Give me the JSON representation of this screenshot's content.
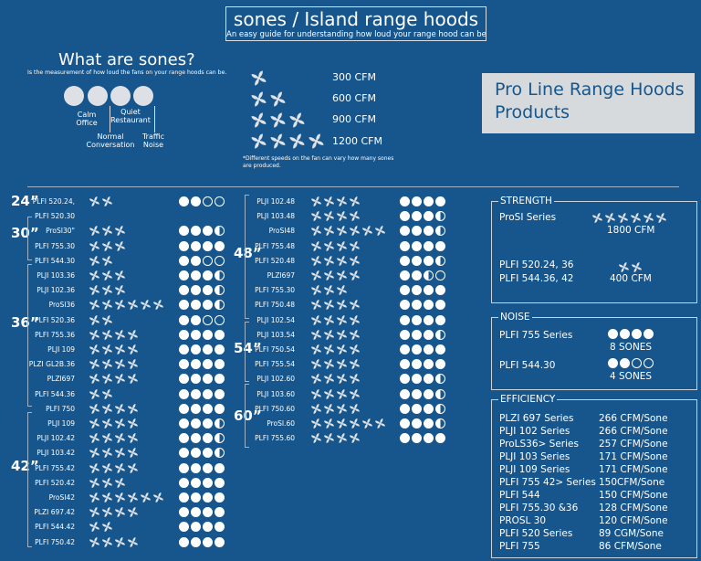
{
  "header": {
    "title": "sones / Island range hoods",
    "subtitle": "An easy guide for understanding how loud your range hood can be"
  },
  "what_are_sones": {
    "title": "What are sones?",
    "subtitle": "Is the measurement of how loud the fans on your range hoods can be.",
    "levels": [
      "Calm Office",
      "Normal Conversation",
      "Quiet Restaurant",
      "Traffic Noise"
    ]
  },
  "cfm_legend": {
    "rows": [
      {
        "fans": 1,
        "label": "300 CFM"
      },
      {
        "fans": 2,
        "label": "600 CFM"
      },
      {
        "fans": 3,
        "label": "900 CFM"
      },
      {
        "fans": 4,
        "label": "1200 CFM"
      }
    ],
    "note": "*Different speeds on the fan can vary how many sones are produced."
  },
  "pro_line": {
    "line1": "Pro Line Range Hoods",
    "line2": "Products"
  },
  "sizes": [
    "24”",
    "30”",
    "36”",
    "42”",
    "48”",
    "54”",
    "60”"
  ],
  "colors": {
    "background": "#17568c",
    "foreground": "#ffffff",
    "panel_fill": "#d7dadd"
  },
  "left_products": [
    {
      "name": "PLFI 520.24,",
      "fans": 2,
      "sones": 2.0
    },
    {
      "name": "PLFI 520.30",
      "fans": 0,
      "sones": null
    },
    {
      "name": "ProSI30\"",
      "fans": 3,
      "sones": 3.5
    },
    {
      "name": "PLFI 755.30",
      "fans": 3,
      "sones": 4
    },
    {
      "name": "PLFI 544.30",
      "fans": 2,
      "sones": 2.0
    },
    {
      "name": "PLJI 103.36",
      "fans": 3,
      "sones": 3.5
    },
    {
      "name": "PLJI 102.36",
      "fans": 3,
      "sones": 3.5
    },
    {
      "name": "ProSI36",
      "fans": 6,
      "sones": 3.5
    },
    {
      "name": "PLFI 520.36",
      "fans": 2,
      "sones": 2.0
    },
    {
      "name": "PLFI 755.36",
      "fans": 4,
      "sones": 4
    },
    {
      "name": "PLJI 109",
      "fans": 4,
      "sones": 4
    },
    {
      "name": "PLZI GL2B.36",
      "fans": 4,
      "sones": 4
    },
    {
      "name": "PLZI697",
      "fans": 4,
      "sones": 4
    },
    {
      "name": "PLFI 544.36",
      "fans": 2,
      "sones": 4
    },
    {
      "name": "PLFI 750",
      "fans": 4,
      "sones": 4
    },
    {
      "name": "PLJI 109",
      "fans": 4,
      "sones": 3.5
    },
    {
      "name": "PLJI 102.42",
      "fans": 4,
      "sones": 3.5
    },
    {
      "name": "PLJI 103.42",
      "fans": 4,
      "sones": 3.5
    },
    {
      "name": "PLFI 755.42",
      "fans": 4,
      "sones": 5
    },
    {
      "name": "PLFI 520.42",
      "fans": 3,
      "sones": 5
    },
    {
      "name": "ProSI42",
      "fans": 6,
      "sones": 5
    },
    {
      "name": "PLZI 697.42",
      "fans": 4,
      "sones": 5
    },
    {
      "name": "PLFI 544.42",
      "fans": 2,
      "sones": 5
    },
    {
      "name": "PLFI 750.42",
      "fans": 4,
      "sones": 5
    }
  ],
  "right_products": [
    {
      "name": "PLJI 102.48",
      "fans": 4,
      "sones": 4
    },
    {
      "name": "PLJI 103.48",
      "fans": 4,
      "sones": 3.5
    },
    {
      "name": "ProSI48",
      "fans": 6,
      "sones": 3.5
    },
    {
      "name": "PLFI 755.48",
      "fans": 4,
      "sones": 4
    },
    {
      "name": "PLFI 520.48",
      "fans": 4,
      "sones": 3.5
    },
    {
      "name": "PLZI697",
      "fans": 4,
      "sones": 2.5
    },
    {
      "name": "PLFI 755.30",
      "fans": 3,
      "sones": 4
    },
    {
      "name": "PLFI 750.48",
      "fans": 4,
      "sones": 4
    },
    {
      "name": "PLJI 102.54",
      "fans": 4,
      "sones": 4
    },
    {
      "name": "PLJI 103.54",
      "fans": 4,
      "sones": 3.5
    },
    {
      "name": "PLFI 750.54",
      "fans": 4,
      "sones": 4
    },
    {
      "name": "PLFI 755.54",
      "fans": 4,
      "sones": 4
    },
    {
      "name": "PLJI 102.60",
      "fans": 4,
      "sones": 3.5
    },
    {
      "name": "PLJI 103.60",
      "fans": 4,
      "sones": 3.5
    },
    {
      "name": "PLFI 750.60",
      "fans": 4,
      "sones": 3.5
    },
    {
      "name": "ProSI.60",
      "fans": 6,
      "sones": 3.5
    },
    {
      "name": "PLFI 755.60",
      "fans": 4,
      "sones": 4
    }
  ],
  "strength": {
    "title": "STRENGTH",
    "items": [
      {
        "name": "ProSI Series",
        "fans": 6,
        "value": "1800 CFM"
      },
      {
        "name": "PLFI 520.24, 36",
        "name2": "PLFI 544.36, 42",
        "fans": 2,
        "value": "400 CFM"
      }
    ]
  },
  "noise": {
    "title": "NOISE",
    "items": [
      {
        "name": "PLFI 755 Series",
        "sones": 4,
        "value": "8 SONES"
      },
      {
        "name": "PLFI 544.30",
        "sones": 2,
        "value": "4 SONES"
      }
    ]
  },
  "efficiency": {
    "title": "EFFICIENCY",
    "rows": [
      {
        "name": "PLZI 697 Series",
        "value": "266 CFM/Sone"
      },
      {
        "name": "PLJI 102 Series",
        "value": "266 CFM/Sone"
      },
      {
        "name": "ProLS36> Series",
        "value": "257 CFM/Sone"
      },
      {
        "name": "PLJI 103 Series",
        "value": "171 CFM/Sone"
      },
      {
        "name": "PLJI 109 Series",
        "value": "171 CFM/Sone"
      },
      {
        "name": "PLFI 755 42> Series",
        "value": "150CFM/Sone"
      },
      {
        "name": "PLFI 544",
        "value": "150 CFM/Sone"
      },
      {
        "name": "PLFI 755.30 &36",
        "value": "128 CFM/Sone"
      },
      {
        "name": "PROSL 30",
        "value": "120 CFM/Sone"
      },
      {
        "name": "PLFI 520 Series",
        "value": "89 CGM/Sone"
      },
      {
        "name": "PLFI 755",
        "value": "86 CFM/Sone"
      }
    ]
  }
}
